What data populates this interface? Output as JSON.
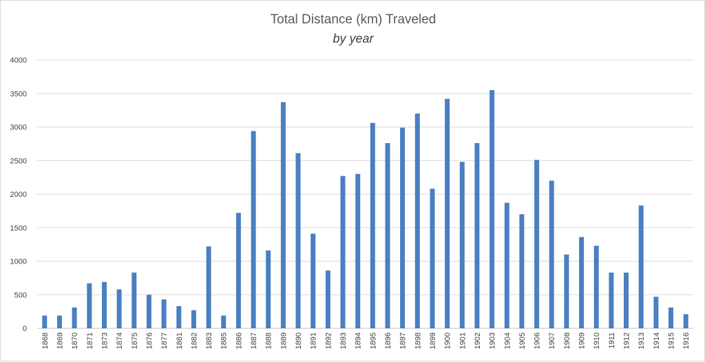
{
  "chart_data": {
    "type": "bar",
    "title": "Total Distance (km) Traveled",
    "subtitle": "by year",
    "xlabel": "",
    "ylabel": "",
    "ylim": [
      0,
      4000
    ],
    "yticks": [
      0,
      500,
      1000,
      1500,
      2000,
      2500,
      3000,
      3500,
      4000
    ],
    "grid": true,
    "legend": "none",
    "bar_color": "#4a7fc1",
    "categories": [
      "1868",
      "1869",
      "1870",
      "1871",
      "1873",
      "1874",
      "1875",
      "1876",
      "1877",
      "1881",
      "1882",
      "1883",
      "1885",
      "1886",
      "1887",
      "1888",
      "1889",
      "1890",
      "1891",
      "1892",
      "1893",
      "1894",
      "1895",
      "1896",
      "1897",
      "1898",
      "1899",
      "1900",
      "1901",
      "1902",
      "1903",
      "1904",
      "1905",
      "1906",
      "1907",
      "1908",
      "1909",
      "1910",
      "1911",
      "1912",
      "1913",
      "1914",
      "1915",
      "1916"
    ],
    "values": [
      190,
      190,
      310,
      670,
      690,
      580,
      830,
      500,
      430,
      330,
      270,
      1220,
      190,
      1720,
      2940,
      1160,
      3370,
      2610,
      1410,
      860,
      2270,
      2300,
      3060,
      2760,
      2990,
      3200,
      2080,
      3420,
      2480,
      2760,
      3550,
      1870,
      1700,
      2510,
      2200,
      1100,
      1360,
      1230,
      830,
      830,
      1830,
      470,
      310,
      210
    ]
  }
}
